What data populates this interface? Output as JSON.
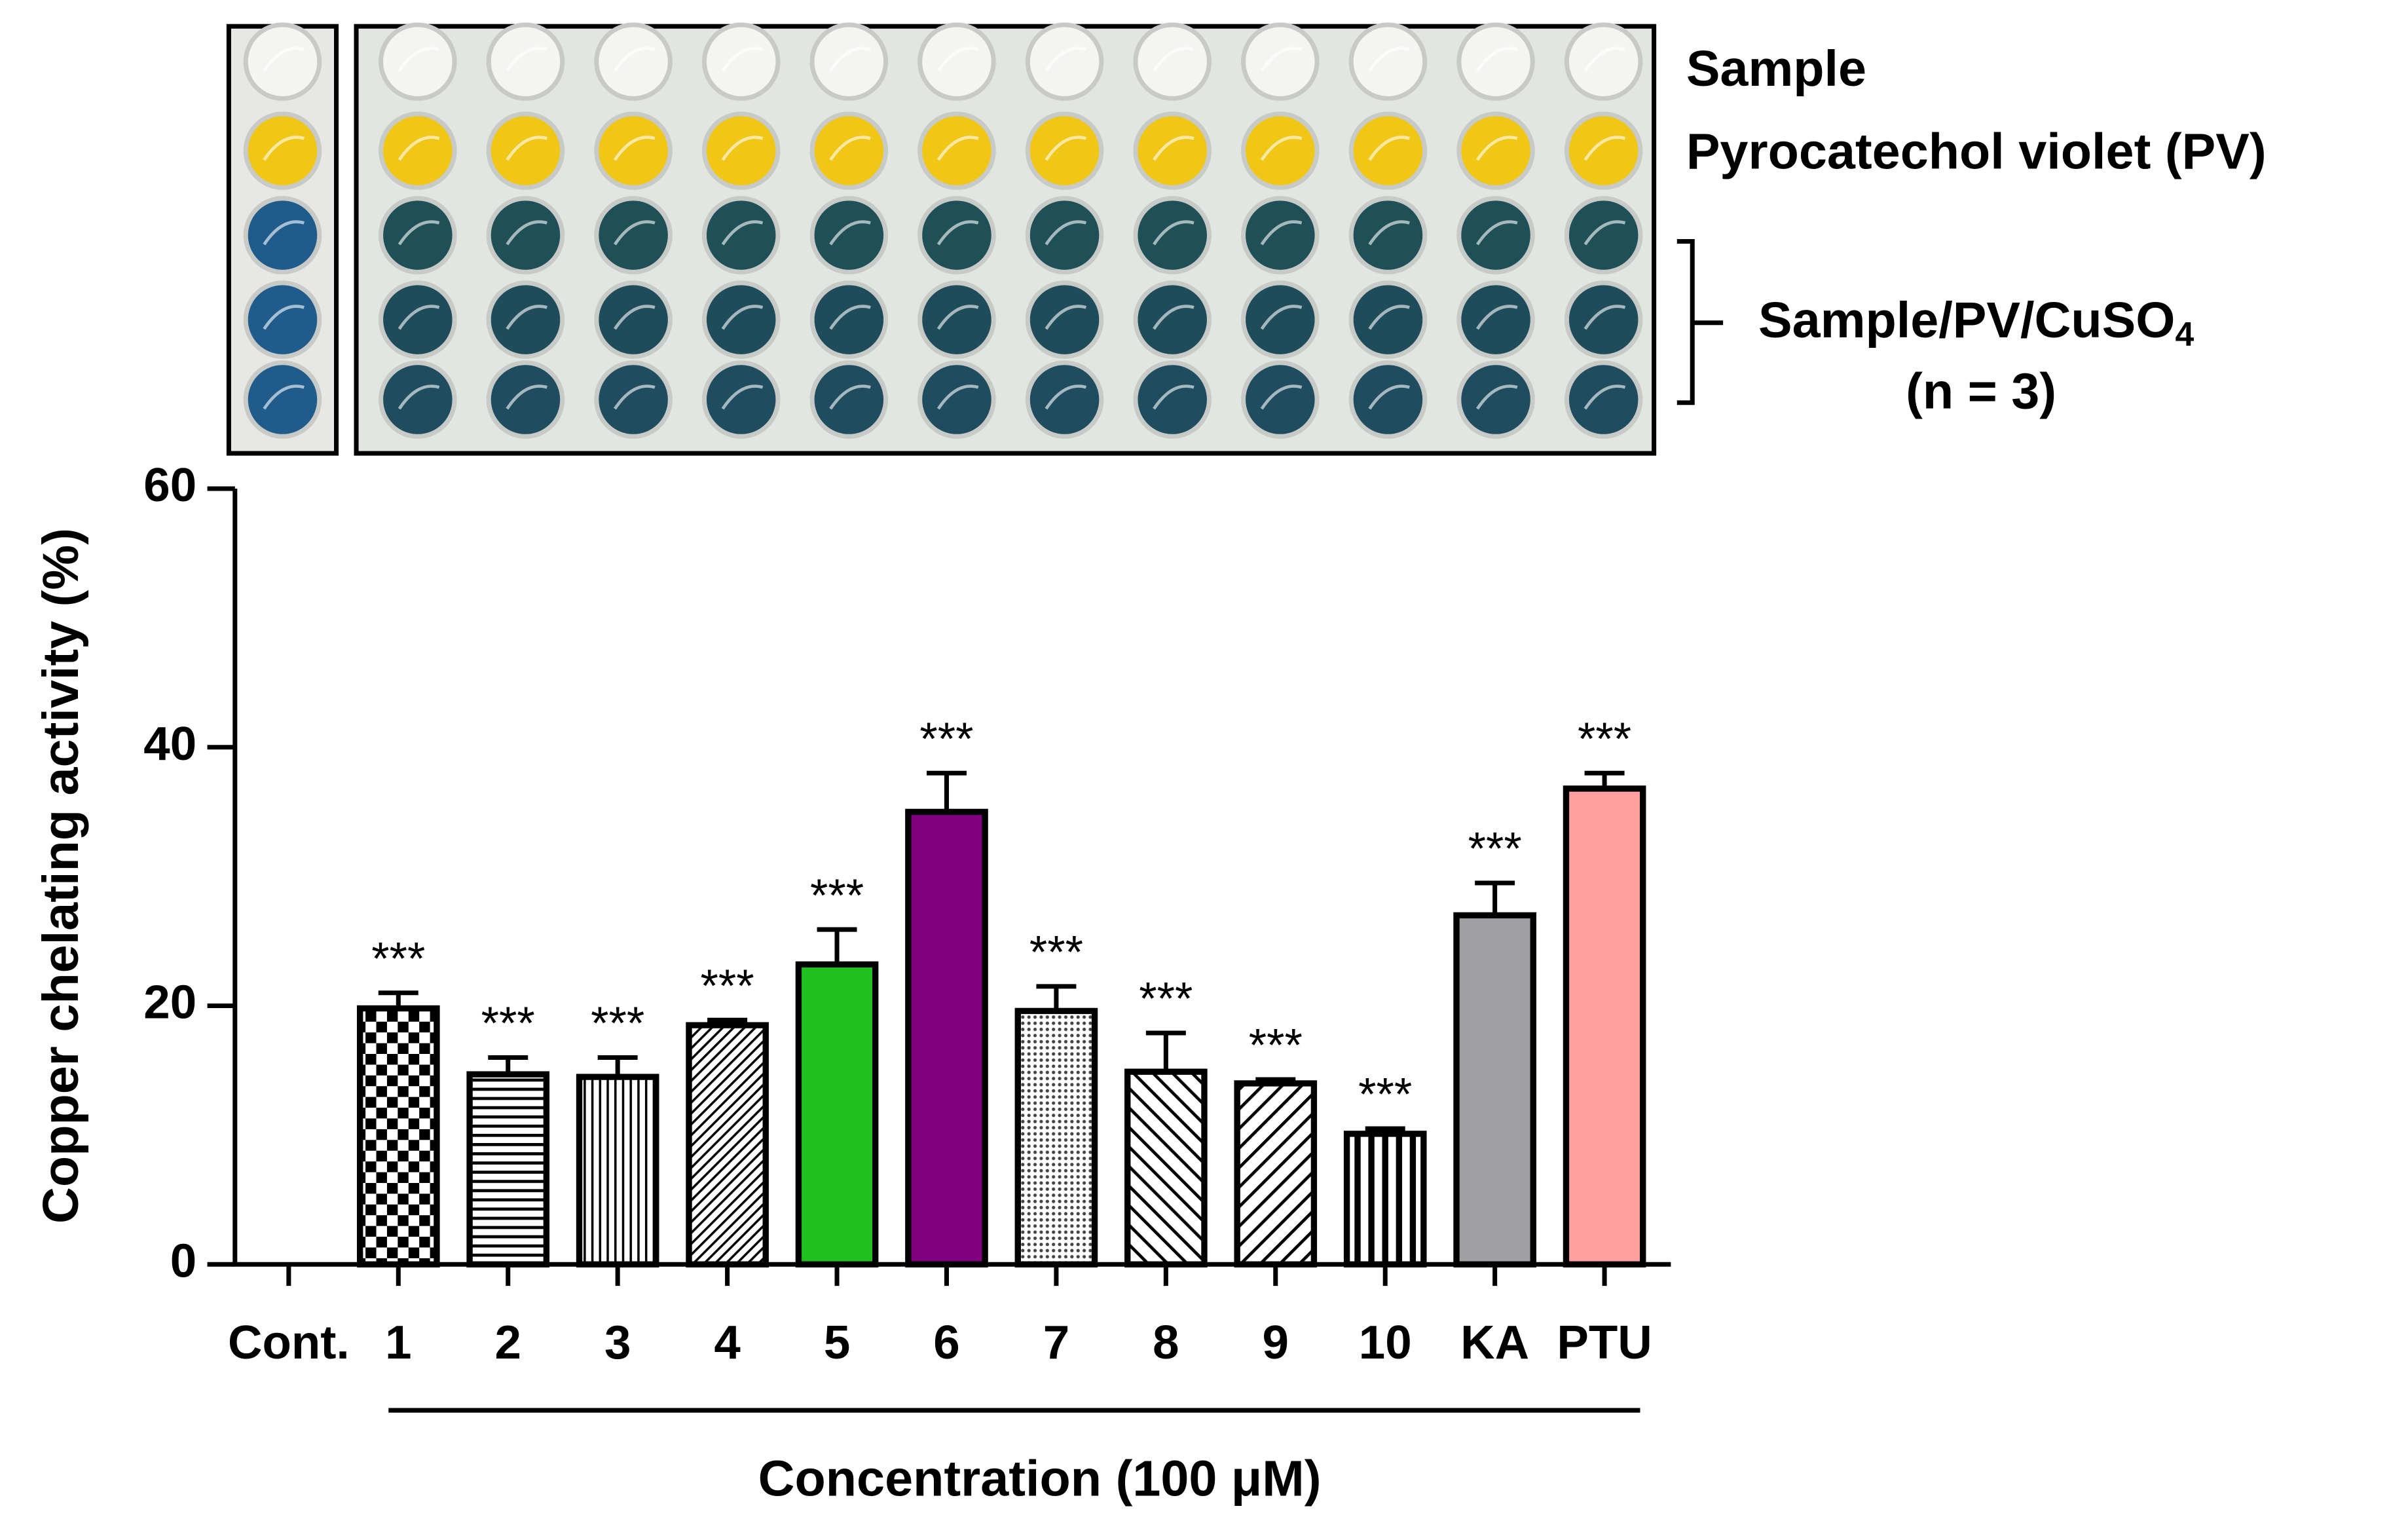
{
  "chart_data": {
    "type": "bar",
    "y_label": "Copper chelating activity (%)",
    "x_label": "Concentration (100 μM)",
    "categories": [
      "Cont.",
      "1",
      "2",
      "3",
      "4",
      "5",
      "6",
      "7",
      "8",
      "9",
      "10",
      "KA",
      "PTU"
    ],
    "values": [
      0,
      19.8,
      14.7,
      14.5,
      18.5,
      23.2,
      35,
      19.6,
      14.9,
      14,
      10.1,
      27,
      36.8
    ],
    "errors": [
      null,
      1.2,
      1.3,
      1.5,
      0.4,
      2.7,
      3,
      1.9,
      3,
      0.3,
      0.4,
      2.5,
      1.2
    ],
    "significance": [
      null,
      "***",
      "***",
      "***",
      "***",
      "***",
      "***",
      "***",
      "***",
      "***",
      "***",
      "***",
      "***"
    ],
    "colors": [
      "#ffffff",
      "#ffffff",
      "#ffffff",
      "#ffffff",
      "#ffffff",
      "#1ec11e",
      "#800080",
      "#ffffff",
      "#ffffff",
      "#ffffff",
      "#ffffff",
      "#a0a0a4",
      "#ff9f9f"
    ],
    "patterns": [
      "none",
      "checker",
      "horizontal",
      "vertical",
      "diagonal",
      "solid",
      "solid",
      "dots",
      "back-diagonal",
      "wide-diagonal",
      "thick-vertical",
      "solid",
      "solid"
    ],
    "ylim": [
      0,
      60
    ],
    "yticks": [
      0,
      20,
      40,
      60
    ]
  },
  "plate_labels": {
    "sample": "Sample",
    "pv": "Pyrocatechol violet (PV)",
    "mix": "Sample/PV/CuSO",
    "mix_sub": "4",
    "n": "(n = 3)"
  }
}
